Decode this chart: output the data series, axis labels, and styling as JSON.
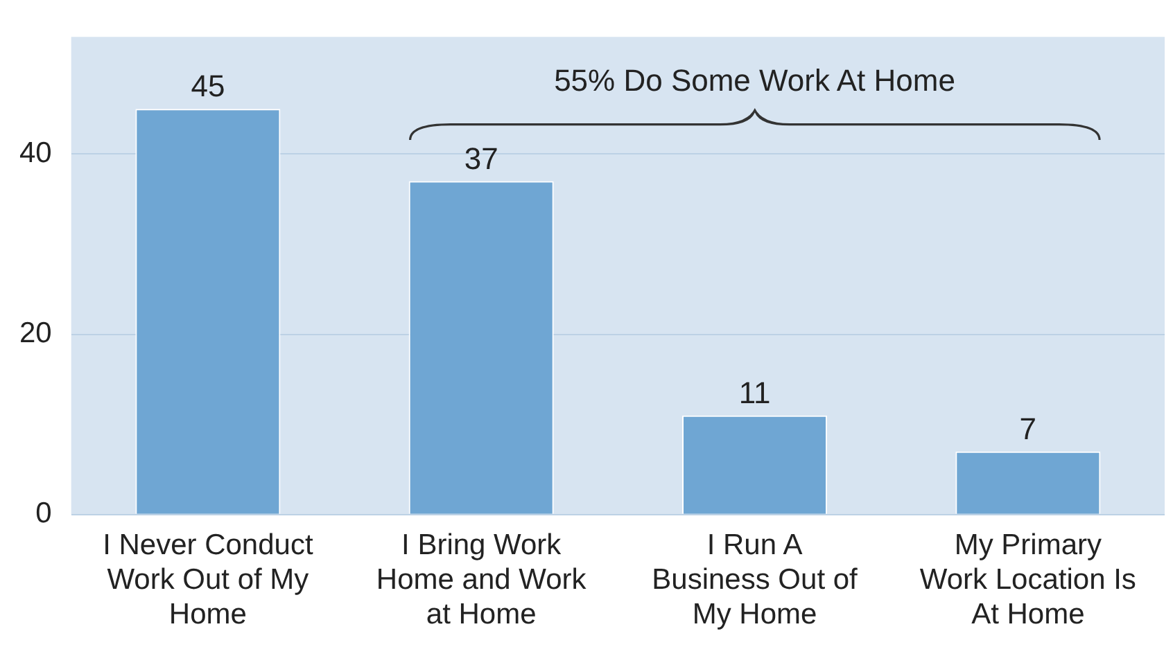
{
  "chart_data": {
    "type": "bar",
    "categories": [
      "I Never Conduct Work Out of My Home",
      "I Bring Work Home and Work at Home",
      "I Run A Business Out of My Home",
      "My Primary Work Location Is At Home"
    ],
    "values": [
      45,
      37,
      11,
      7
    ],
    "color": "#6fa6d3",
    "ylim": [
      0,
      53
    ],
    "yticks": [
      0,
      20,
      40
    ],
    "grid": "y",
    "legend": false,
    "data_labels": true,
    "annotations": [
      "55% Do Some Work At Home"
    ]
  }
}
